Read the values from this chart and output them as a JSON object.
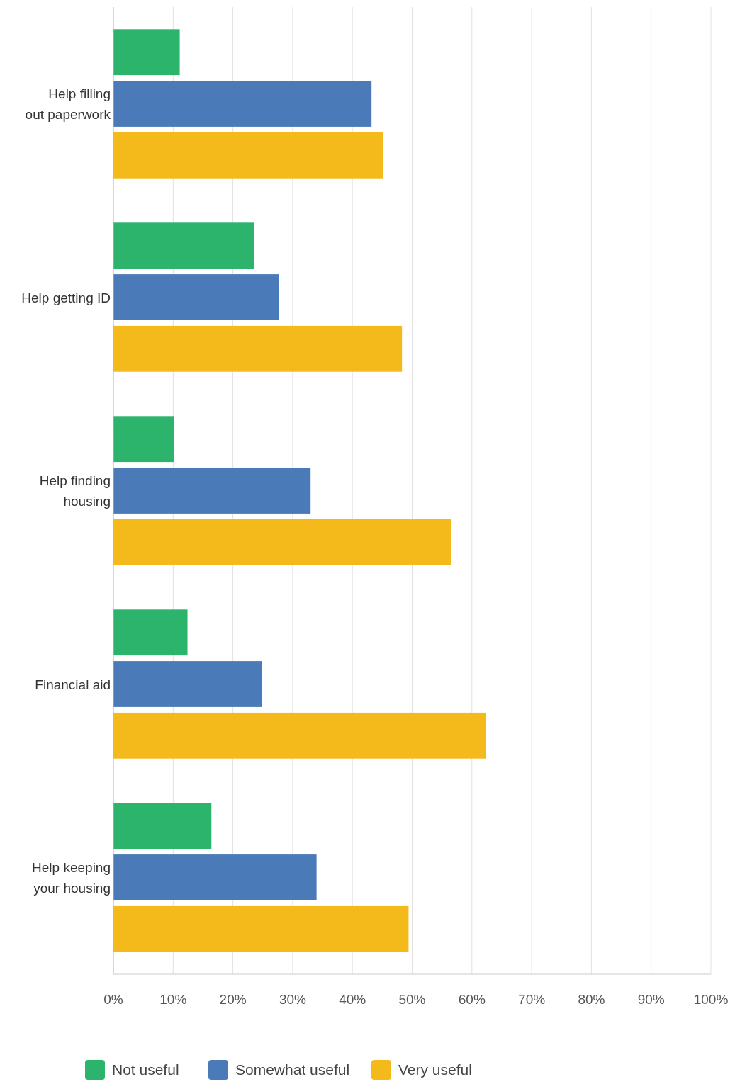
{
  "chart_data": {
    "type": "bar",
    "orientation": "horizontal",
    "categories": [
      "Help filling out paperwork",
      "Help getting ID",
      "Help finding housing",
      "Financial aid",
      "Help keeping your housing"
    ],
    "series": [
      {
        "name": "Not useful",
        "color": "#2db46c",
        "values": [
          11.1,
          23.5,
          10.1,
          12.4,
          16.4
        ]
      },
      {
        "name": "Somewhat useful",
        "color": "#4a7ab8",
        "values": [
          43.2,
          27.7,
          33.0,
          24.8,
          34.0
        ]
      },
      {
        "name": "Very useful",
        "color": "#f4b91a",
        "values": [
          45.2,
          48.3,
          56.5,
          62.3,
          49.4
        ]
      }
    ],
    "xlim": [
      0,
      100
    ],
    "xticks": [
      {
        "value": 0,
        "label": "0%"
      },
      {
        "value": 10,
        "label": "10%"
      },
      {
        "value": 20,
        "label": "20%"
      },
      {
        "value": 30,
        "label": "30%"
      },
      {
        "value": 40,
        "label": "40%"
      },
      {
        "value": 50,
        "label": "50%"
      },
      {
        "value": 60,
        "label": "60%"
      },
      {
        "value": 70,
        "label": "70%"
      },
      {
        "value": 80,
        "label": "80%"
      },
      {
        "value": 90,
        "label": "90%"
      },
      {
        "value": 100,
        "label": "100%"
      }
    ],
    "grid": "x",
    "legend": "bottom"
  }
}
